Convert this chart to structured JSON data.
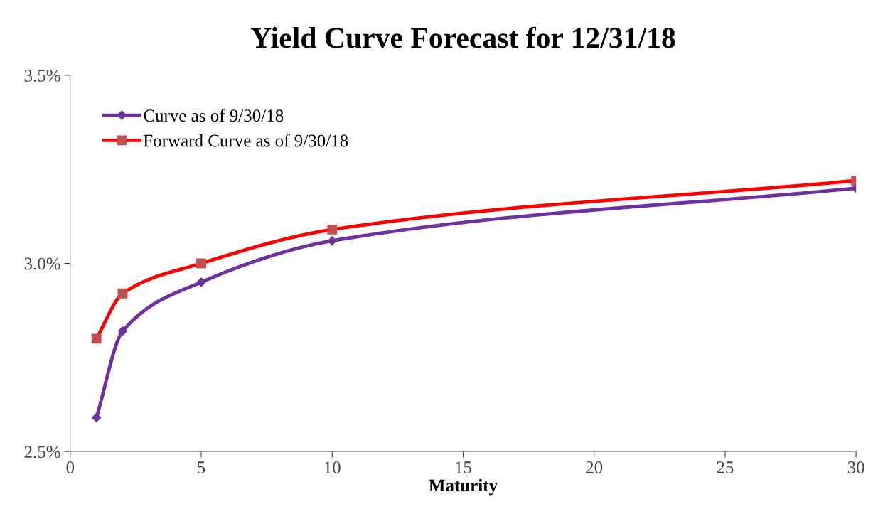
{
  "chart_data": {
    "type": "line",
    "title": "Yield Curve Forecast for 12/31/18",
    "xlabel": "Maturity",
    "series": [
      {
        "name": "Curve as of 9/30/18",
        "color": "#7030a0",
        "marker": "diamond",
        "x": [
          1,
          2,
          5,
          10,
          30
        ],
        "values": [
          2.59,
          2.82,
          2.95,
          3.06,
          3.2
        ]
      },
      {
        "name": "Forward Curve as of 9/30/18",
        "color": "#ff0000",
        "marker": "square",
        "x": [
          1,
          2,
          5,
          10,
          30
        ],
        "values": [
          2.8,
          2.92,
          3.0,
          3.09,
          3.22
        ]
      }
    ],
    "xlim": [
      0,
      30
    ],
    "xticks": [
      0,
      5,
      10,
      15,
      20,
      25,
      30
    ],
    "ylim": [
      2.5,
      3.5
    ],
    "yticks": [
      {
        "value": 2.5,
        "label": "2.5%"
      },
      {
        "value": 3.0,
        "label": "3.0%"
      },
      {
        "value": 3.5,
        "label": "3.5%"
      }
    ],
    "grid": false,
    "legend": "top left",
    "line_style": "solid"
  }
}
